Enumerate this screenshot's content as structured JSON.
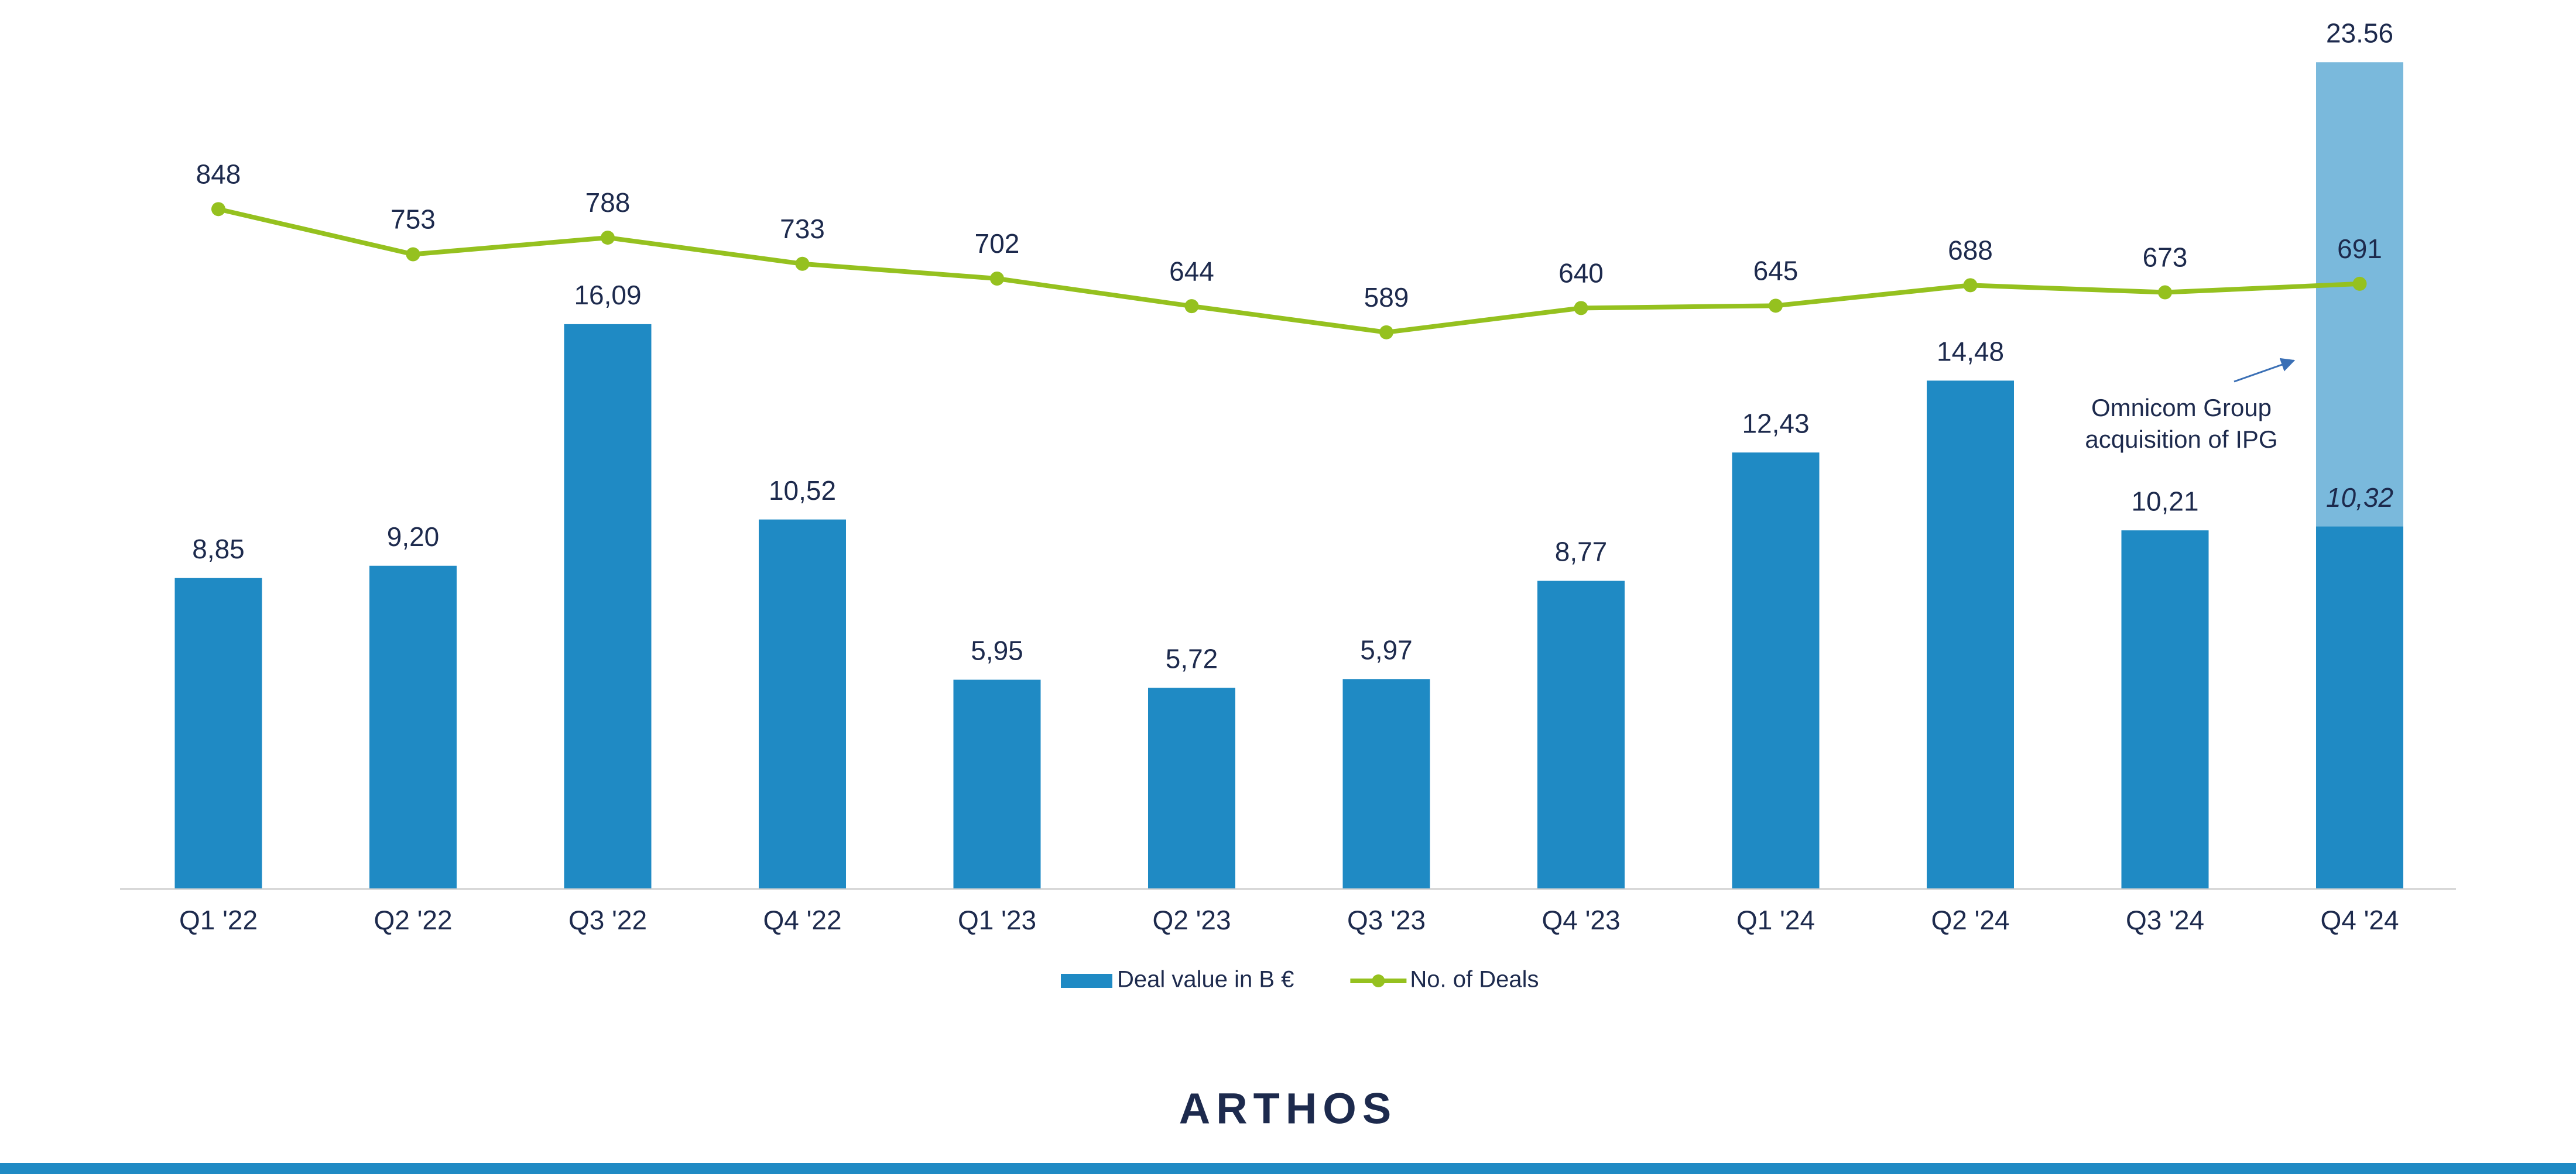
{
  "chart_data": {
    "type": "bar",
    "categories": [
      "Q1 '22",
      "Q2 '22",
      "Q3 '22",
      "Q4 '22",
      "Q1 '23",
      "Q2 '23",
      "Q3 '23",
      "Q4 '23",
      "Q1 '24",
      "Q2 '24",
      "Q3 '24",
      "Q4 '24"
    ],
    "series": [
      {
        "name": "Deal value in B €",
        "type": "bar",
        "color": "#1f8ac4",
        "values": [
          8.85,
          9.2,
          16.09,
          10.52,
          5.95,
          5.72,
          5.97,
          8.77,
          12.43,
          14.48,
          10.21,
          10.32
        ],
        "value_labels": [
          "8,85",
          "9,20",
          "16,09",
          "10,52",
          "5,95",
          "5,72",
          "5,97",
          "8,77",
          "12,43",
          "14,48",
          "10,21",
          "10,32"
        ],
        "totals": [
          null,
          null,
          null,
          null,
          null,
          null,
          null,
          null,
          null,
          null,
          null,
          23.56
        ],
        "total_color": "#7ab9dc"
      },
      {
        "name": "No. of Deals",
        "type": "line",
        "axis": "y2",
        "color": "#95c11f",
        "values": [
          848,
          753,
          788,
          733,
          702,
          644,
          589,
          640,
          645,
          688,
          673,
          691
        ]
      }
    ],
    "ylim": [
      0,
      25
    ],
    "y2lim": [
      -580,
      1263
    ],
    "annotation": [
      "Omnicom Group",
      "acquisition of IPG"
    ]
  },
  "logo": "ARTHOS"
}
